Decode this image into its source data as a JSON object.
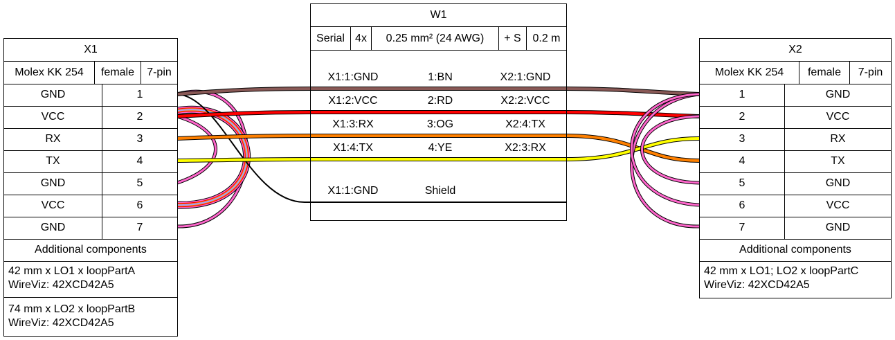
{
  "x1": {
    "title": "X1",
    "type": "Molex KK 254",
    "gender": "female",
    "pincount": "7-pin",
    "pins": [
      {
        "label": "GND",
        "num": "1"
      },
      {
        "label": "VCC",
        "num": "2"
      },
      {
        "label": "RX",
        "num": "3"
      },
      {
        "label": "TX",
        "num": "4"
      },
      {
        "label": "GND",
        "num": "5"
      },
      {
        "label": "VCC",
        "num": "6"
      },
      {
        "label": "GND",
        "num": "7"
      }
    ],
    "additional_title": "Additional components",
    "additional": [
      {
        "line1": "42 mm x LO1 x loopPartA",
        "line2": "WireViz: 42XCD42A5"
      },
      {
        "line1": "74 mm x LO2 x loopPartB",
        "line2": "WireViz: 42XCD42A5"
      }
    ]
  },
  "x2": {
    "title": "X2",
    "type": "Molex KK 254",
    "gender": "female",
    "pincount": "7-pin",
    "pins": [
      {
        "num": "1",
        "label": "GND"
      },
      {
        "num": "2",
        "label": "VCC"
      },
      {
        "num": "3",
        "label": "RX"
      },
      {
        "num": "4",
        "label": "TX"
      },
      {
        "num": "5",
        "label": "GND"
      },
      {
        "num": "6",
        "label": "VCC"
      },
      {
        "num": "7",
        "label": "GND"
      }
    ],
    "additional_title": "Additional components",
    "additional": [
      {
        "line1": "42 mm x LO1; LO2 x loopPartC",
        "line2": "WireViz: 42XCD42A5"
      }
    ]
  },
  "w1": {
    "title": "W1",
    "attrs": [
      "Serial",
      "4x",
      "0.25 mm² (24 AWG)",
      "+ S",
      "0.2 m"
    ],
    "wires": [
      {
        "left": "X1:1:GND",
        "mid": "1:BN",
        "right": "X2:1:GND",
        "color": "#895956"
      },
      {
        "left": "X1:2:VCC",
        "mid": "2:RD",
        "right": "X2:2:VCC",
        "color": "#ff0000"
      },
      {
        "left": "X1:3:RX",
        "mid": "3:OG",
        "right": "X2:4:TX",
        "color": "#ff8000"
      },
      {
        "left": "X1:4:TX",
        "mid": "4:YE",
        "right": "X2:3:RX",
        "color": "#ffff00"
      }
    ],
    "shield": {
      "left": "X1:1:GND",
      "mid": "Shield"
    }
  },
  "colors": {
    "loop": "#ff66cc",
    "outline": "#000000"
  }
}
